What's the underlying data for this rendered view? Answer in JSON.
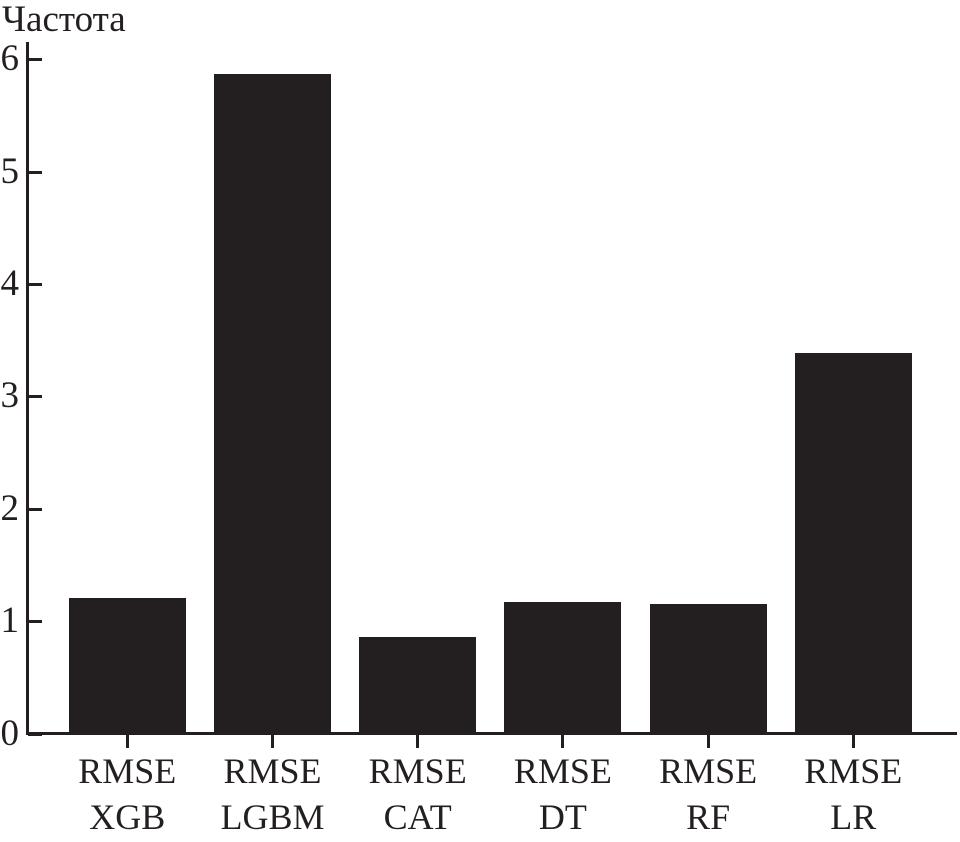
{
  "chart_data": {
    "type": "bar",
    "title": "",
    "ylabel": "Частота",
    "xlabel": "",
    "categories": [
      {
        "line1": "RMSE",
        "line2": "XGB"
      },
      {
        "line1": "RMSE",
        "line2": "LGBM"
      },
      {
        "line1": "RMSE",
        "line2": "CAT"
      },
      {
        "line1": "RMSE",
        "line2": "DT"
      },
      {
        "line1": "RMSE",
        "line2": "RF"
      },
      {
        "line1": "RMSE",
        "line2": "LR"
      }
    ],
    "values": [
      1.21,
      5.87,
      0.86,
      1.17,
      1.16,
      3.39
    ],
    "ylim": [
      0,
      6
    ],
    "yticks": [
      "0",
      "1",
      "2",
      "3",
      "4",
      "5",
      "6"
    ],
    "grid": false,
    "legend": null,
    "bar_color": "#231f20",
    "axis_color": "#231f20",
    "text_color": "#231f20",
    "background_color": "#ffffff"
  }
}
